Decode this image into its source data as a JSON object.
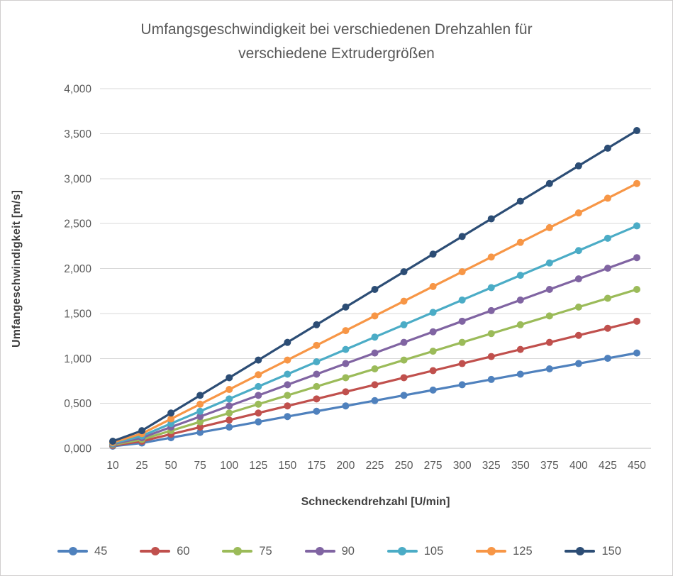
{
  "chart_data": {
    "type": "line",
    "title": "Umfangsgeschwindigkeit bei verschiedenen Drehzahlen für verschiedene Extrudergrößen",
    "xlabel": "Schneckendrehzahl [U/min]",
    "ylabel": "Umfangeschwindigkeit [m/s]",
    "categories": [
      10,
      25,
      50,
      75,
      100,
      125,
      150,
      175,
      200,
      225,
      250,
      275,
      300,
      325,
      350,
      375,
      400,
      425,
      450
    ],
    "yticks": [
      "0,000",
      "0,500",
      "1,000",
      "1,500",
      "2,000",
      "2,500",
      "3,000",
      "3,500",
      "4,000"
    ],
    "ylim": [
      0,
      4
    ],
    "grid": "horizontal",
    "legend_position": "bottom",
    "colors": {
      "gridline": "#d9d9d9",
      "axis_line": "#bfbfbf",
      "title_text": "#595959",
      "axis_title_text": "#404040",
      "tick_text": "#595959"
    },
    "series": [
      {
        "name": "45",
        "color": "#4F81BD",
        "values": [
          0.0236,
          0.0589,
          0.1178,
          0.1767,
          0.2356,
          0.2945,
          0.3534,
          0.4123,
          0.4712,
          0.5301,
          0.589,
          0.648,
          0.7069,
          0.7658,
          0.8247,
          0.8836,
          0.9425,
          1.0014,
          1.0603
        ]
      },
      {
        "name": "60",
        "color": "#C0504D",
        "values": [
          0.0314,
          0.0785,
          0.1571,
          0.2356,
          0.3142,
          0.3927,
          0.4712,
          0.5498,
          0.6283,
          0.7069,
          0.7854,
          0.8639,
          0.9425,
          1.021,
          1.0996,
          1.1781,
          1.2566,
          1.3352,
          1.4137
        ]
      },
      {
        "name": "75",
        "color": "#9BBB59",
        "values": [
          0.0393,
          0.0982,
          0.1963,
          0.2945,
          0.3927,
          0.4909,
          0.589,
          0.6872,
          0.7854,
          0.8836,
          0.9817,
          1.0799,
          1.1781,
          1.2763,
          1.3744,
          1.4726,
          1.5708,
          1.669,
          1.7671
        ]
      },
      {
        "name": "90",
        "color": "#8064A2",
        "values": [
          0.0471,
          0.1178,
          0.2356,
          0.3534,
          0.4712,
          0.589,
          0.7069,
          0.8247,
          0.9425,
          1.0603,
          1.1781,
          1.2959,
          1.4137,
          1.5315,
          1.6493,
          1.7671,
          1.885,
          2.0028,
          2.1206
        ]
      },
      {
        "name": "105",
        "color": "#4BACC6",
        "values": [
          0.055,
          0.1374,
          0.2749,
          0.4123,
          0.5498,
          0.6872,
          0.8247,
          0.9621,
          1.0996,
          1.237,
          1.3744,
          1.5119,
          1.6493,
          1.7868,
          1.9242,
          2.0617,
          2.1991,
          2.3366,
          2.474
        ]
      },
      {
        "name": "125",
        "color": "#F79646",
        "values": [
          0.0654,
          0.1636,
          0.3272,
          0.4909,
          0.6545,
          0.8181,
          0.9817,
          1.1454,
          1.309,
          1.4726,
          1.6362,
          1.7999,
          1.9635,
          2.1271,
          2.2907,
          2.4544,
          2.618,
          2.7816,
          2.9452
        ]
      },
      {
        "name": "150",
        "color": "#2C4D75",
        "values": [
          0.0785,
          0.1963,
          0.3927,
          0.589,
          0.7854,
          0.9817,
          1.1781,
          1.3744,
          1.5708,
          1.7671,
          1.9635,
          2.1598,
          2.3562,
          2.5525,
          2.7489,
          2.9452,
          3.1416,
          3.3379,
          3.5343
        ]
      }
    ]
  }
}
